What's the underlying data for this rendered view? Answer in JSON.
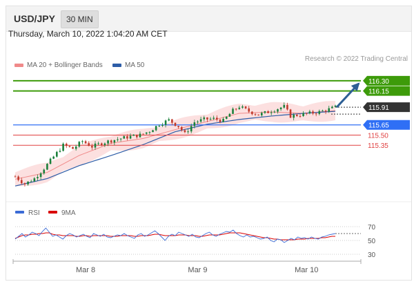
{
  "header": {
    "symbol": "USD/JPY",
    "timeframe": "30 MIN"
  },
  "timestamp": "Thursday, March 10, 2022 1:04:20 AM CET",
  "legend": {
    "items": [
      {
        "label": "MA 20 + Bollinger Bands",
        "color": "#f08a8a"
      },
      {
        "label": "MA 50",
        "color": "#2d5da7"
      }
    ],
    "credit": "Research © 2022 Trading Central"
  },
  "colors": {
    "bull": "#19803a",
    "bear": "#c0392b",
    "band": "#fbd5d5",
    "ma20": "#f08a8a",
    "ma50": "#2d5da7",
    "resistance": "#3d9b0a",
    "pivot": "#2f6ff5",
    "support": "#e04040",
    "current": "#333333",
    "rsi": "#3b6bd6",
    "rsi_ma": "#d90000"
  },
  "chart_data": [
    {
      "type": "candlestick",
      "title": "USD/JPY 30 MIN",
      "x_ticks": [
        "Mar 8",
        "Mar 9",
        "Mar 10"
      ],
      "x_tick_index": [
        22,
        57,
        91
      ],
      "ylim": [
        114.62,
        116.4
      ],
      "ohlc_close_path": [
        [
          0,
          114.89
        ],
        [
          3,
          114.78
        ],
        [
          6,
          114.86
        ],
        [
          9,
          115.01
        ],
        [
          12,
          115.18
        ],
        [
          15,
          115.35
        ],
        [
          18,
          115.3
        ],
        [
          21,
          115.41
        ],
        [
          24,
          115.33
        ],
        [
          27,
          115.38
        ],
        [
          30,
          115.42
        ],
        [
          33,
          115.45
        ],
        [
          36,
          115.48
        ],
        [
          39,
          115.5
        ],
        [
          42,
          115.56
        ],
        [
          45,
          115.66
        ],
        [
          48,
          115.72
        ],
        [
          51,
          115.63
        ],
        [
          53,
          115.52
        ],
        [
          56,
          115.69
        ],
        [
          59,
          115.73
        ],
        [
          62,
          115.74
        ],
        [
          65,
          115.71
        ],
        [
          68,
          115.86
        ],
        [
          70,
          115.92
        ],
        [
          73,
          115.85
        ],
        [
          76,
          115.8
        ],
        [
          79,
          115.84
        ],
        [
          82,
          115.89
        ],
        [
          84,
          115.92
        ],
        [
          86,
          115.78
        ],
        [
          89,
          115.8
        ],
        [
          92,
          115.82
        ],
        [
          95,
          115.84
        ],
        [
          98,
          115.88
        ],
        [
          100,
          115.91
        ]
      ],
      "ma50": [
        [
          0,
          114.75
        ],
        [
          10,
          114.86
        ],
        [
          20,
          115.05
        ],
        [
          30,
          115.2
        ],
        [
          40,
          115.36
        ],
        [
          50,
          115.55
        ],
        [
          60,
          115.66
        ],
        [
          70,
          115.73
        ],
        [
          80,
          115.78
        ],
        [
          90,
          115.82
        ],
        [
          100,
          115.85
        ]
      ],
      "ma20": [
        [
          0,
          114.85
        ],
        [
          10,
          114.95
        ],
        [
          20,
          115.2
        ],
        [
          30,
          115.38
        ],
        [
          40,
          115.45
        ],
        [
          50,
          115.58
        ],
        [
          60,
          115.7
        ],
        [
          70,
          115.82
        ],
        [
          80,
          115.84
        ],
        [
          90,
          115.82
        ],
        [
          100,
          115.86
        ]
      ],
      "levels": [
        {
          "value": 116.3,
          "label": "116.30",
          "kind": "resistance"
        },
        {
          "value": 116.15,
          "label": "116.15",
          "kind": "resistance"
        },
        {
          "value": 115.91,
          "label": "115.91",
          "kind": "current"
        },
        {
          "value": 115.65,
          "label": "115.65",
          "kind": "pivot"
        },
        {
          "value": 115.5,
          "label": "115.50",
          "kind": "support"
        },
        {
          "value": 115.35,
          "label": "115.35",
          "kind": "support"
        }
      ],
      "projection": {
        "from": [
          100,
          115.91
        ],
        "to": [
          104,
          116.3
        ]
      }
    },
    {
      "type": "line",
      "title": "RSI",
      "series": [
        {
          "name": "RSI",
          "values": [
            52,
            56,
            60,
            55,
            58,
            62,
            60,
            57,
            63,
            68,
            62,
            56,
            58,
            55,
            52,
            57,
            60,
            58,
            55,
            57,
            59,
            56,
            54,
            60,
            58,
            56,
            59,
            55,
            54,
            56,
            58,
            57,
            60,
            57,
            55,
            53,
            58,
            60,
            56,
            58,
            61,
            64,
            60,
            55,
            50,
            56,
            59,
            57,
            62,
            60,
            58,
            56,
            59,
            55,
            54,
            57,
            60,
            62,
            58,
            56,
            59,
            61,
            63,
            62,
            65,
            60,
            57,
            55,
            58,
            55,
            56,
            54,
            52,
            53,
            55,
            50,
            48,
            52,
            51,
            47,
            50,
            53,
            51,
            55,
            53,
            54,
            52,
            55,
            53,
            52,
            55,
            56,
            58,
            59,
            60
          ]
        },
        {
          "name": "9MA",
          "values": [
            53,
            55,
            57,
            58,
            58,
            59,
            59,
            60,
            60,
            61,
            61,
            59,
            58,
            58,
            57,
            57,
            57,
            57,
            56,
            56,
            57,
            57,
            56,
            57,
            57,
            57,
            57,
            57,
            56,
            56,
            56,
            57,
            57,
            57,
            57,
            56,
            56,
            57,
            57,
            57,
            58,
            59,
            59,
            58,
            57,
            57,
            57,
            57,
            58,
            58,
            58,
            57,
            57,
            57,
            56,
            56,
            57,
            58,
            58,
            58,
            58,
            59,
            60,
            61,
            61,
            61,
            61,
            60,
            59,
            58,
            57,
            56,
            55,
            54,
            54,
            53,
            52,
            52,
            51,
            51,
            51,
            51,
            51,
            52,
            52,
            52,
            53,
            53,
            53,
            53,
            54,
            54,
            55,
            56,
            56
          ]
        }
      ],
      "y_ticks": [
        70,
        50,
        30
      ],
      "ylim": [
        20,
        80
      ]
    }
  ]
}
